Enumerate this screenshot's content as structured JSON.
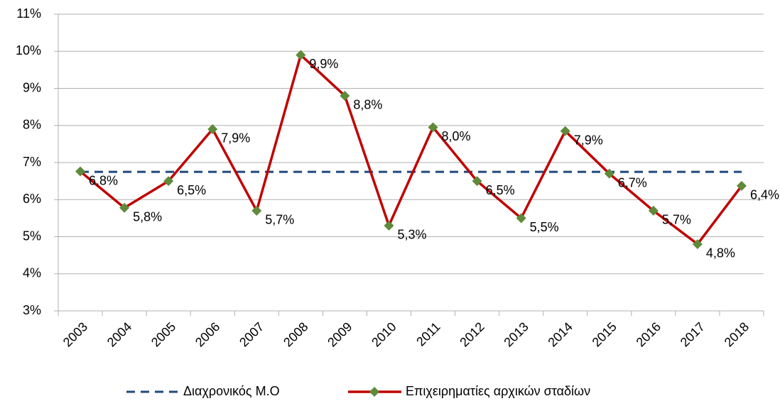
{
  "chart_data": {
    "type": "line",
    "categories": [
      "2003",
      "2004",
      "2005",
      "2006",
      "2007",
      "2008",
      "2009",
      "2010",
      "2011",
      "2012",
      "2013",
      "2014",
      "2015",
      "2016",
      "2017",
      "2018"
    ],
    "series": [
      {
        "name": "Διαχρονικός Μ.Ο",
        "color": "#1f497d",
        "dashed": true,
        "values": [
          6.75,
          6.75,
          6.75,
          6.75,
          6.75,
          6.75,
          6.75,
          6.75,
          6.75,
          6.75,
          6.75,
          6.75,
          6.75,
          6.75,
          6.75,
          6.75
        ]
      },
      {
        "name": "Επιχειρηματίες αρχικών σταδίων",
        "color": "#c00000",
        "marker_color": "#5f8a3a",
        "values": [
          6.76,
          5.78,
          6.5,
          7.9,
          5.7,
          9.9,
          8.8,
          5.3,
          7.95,
          6.5,
          5.5,
          7.85,
          6.7,
          5.7,
          4.8,
          6.37
        ],
        "value_labels": [
          "6,8%",
          "5,8%",
          "6,5%",
          "7,9%",
          "5,7%",
          "9,9%",
          "8,8%",
          "5,3%",
          "8,0%",
          "6,5%",
          "5,5%",
          "7,9%",
          "6,7%",
          "5,7%",
          "4,8%",
          "6,4%"
        ]
      }
    ],
    "ylim": [
      3,
      11
    ],
    "yticks": [
      {
        "value": 3,
        "label": "3%"
      },
      {
        "value": 4,
        "label": "4%"
      },
      {
        "value": 5,
        "label": "5%"
      },
      {
        "value": 6,
        "label": "6%"
      },
      {
        "value": 7,
        "label": "7%"
      },
      {
        "value": 8,
        "label": "8%"
      },
      {
        "value": 9,
        "label": "9%"
      },
      {
        "value": 10,
        "label": "10%"
      },
      {
        "value": 11,
        "label": "11%"
      }
    ],
    "grid": true,
    "legend": "bottom"
  }
}
